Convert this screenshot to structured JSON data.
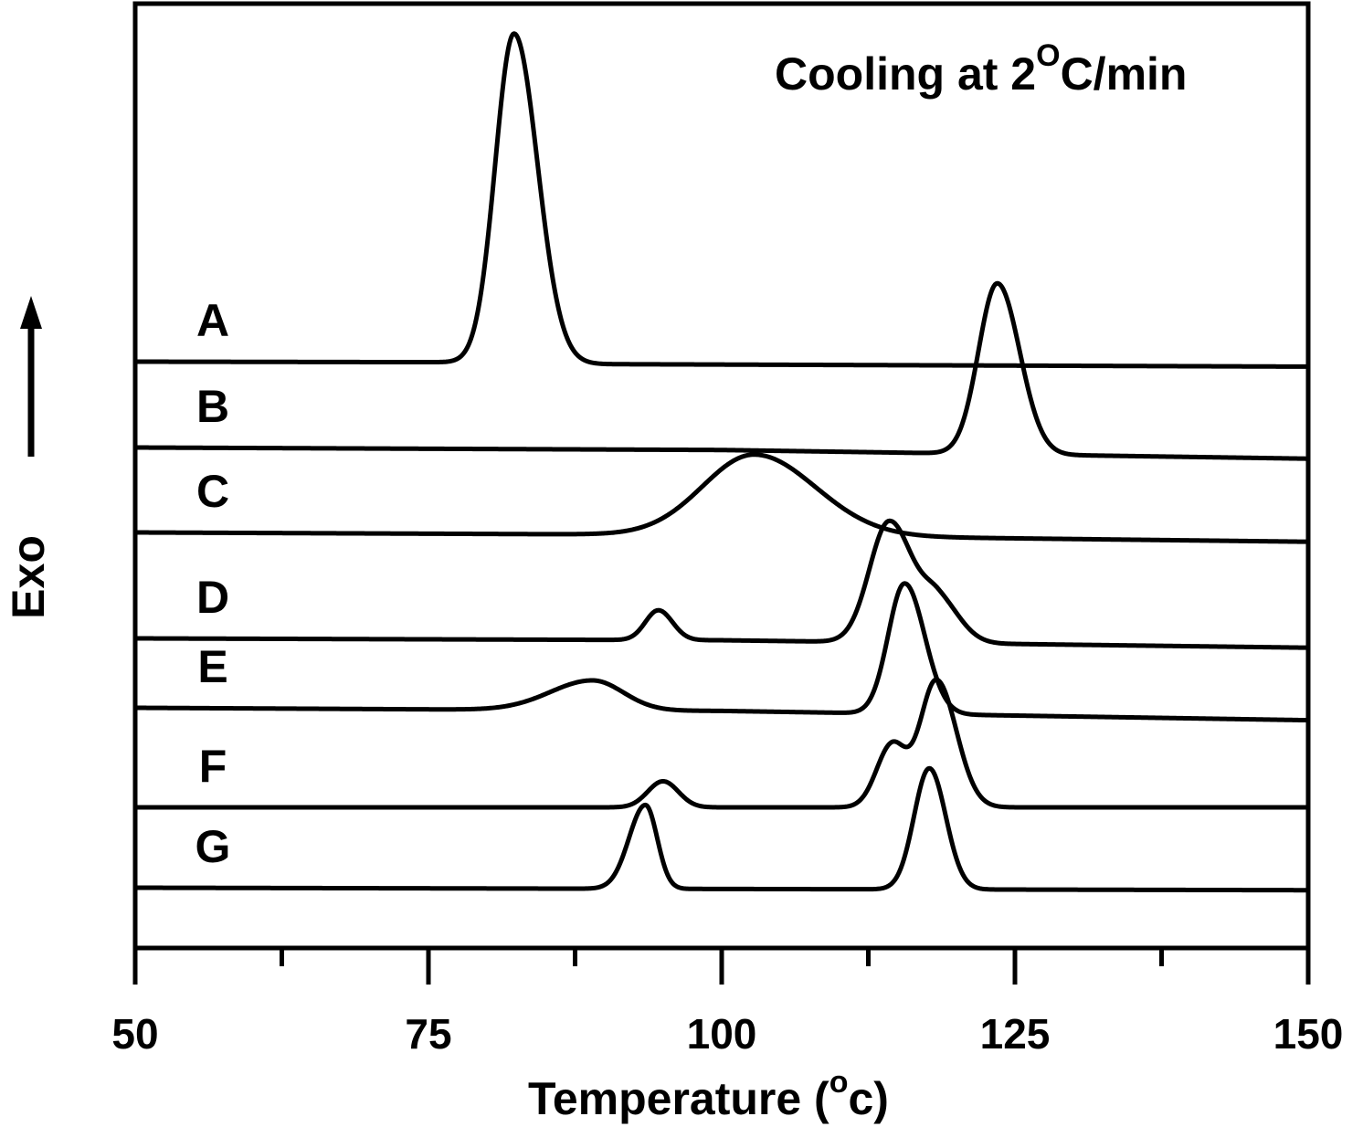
{
  "chart_data": {
    "type": "line",
    "title": "",
    "annotation": {
      "text": "Cooling at 2",
      "sup": "O",
      "suffix": "C/min"
    },
    "xlabel": {
      "text": "Temperature (",
      "sup": "o",
      "suffix": "c)"
    },
    "ylabel": "Exo",
    "xlim": [
      50,
      150
    ],
    "x_ticks_major": [
      50,
      75,
      100,
      125,
      150
    ],
    "x_tick_labels": [
      "50",
      "75",
      "100",
      "125",
      "150"
    ],
    "x_ticks_minor": [
      62.5,
      87.5,
      112.5,
      137.5
    ],
    "y_axis_arrow": "up",
    "y_ticks": "none",
    "grid": false,
    "legend": "none",
    "series": [
      {
        "name": "A",
        "label": "A",
        "baseline": [
          [
            50,
            1.0
          ],
          [
            80,
            0.99
          ],
          [
            90,
            0.96
          ],
          [
            150,
            0.92
          ]
        ],
        "peaks": [
          {
            "x": 82.3,
            "h": 5.3,
            "wl": 1.6,
            "wr": 2.0
          }
        ]
      },
      {
        "name": "B",
        "label": "B",
        "baseline": [
          [
            50,
            1.0
          ],
          [
            100,
            0.96
          ],
          [
            150,
            0.82
          ]
        ],
        "peaks": [
          {
            "x": 123.5,
            "h": 2.75,
            "wl": 1.6,
            "wr": 1.9
          }
        ]
      },
      {
        "name": "C",
        "label": "C",
        "baseline": [
          [
            50,
            1.0
          ],
          [
            100,
            0.96
          ],
          [
            150,
            0.85
          ]
        ],
        "peaks": [
          {
            "x": 102.8,
            "h": 1.3,
            "wl": 4.4,
            "wr": 5.2
          }
        ]
      },
      {
        "name": "D",
        "label": "D",
        "baseline": [
          [
            50,
            1.0
          ],
          [
            100,
            0.97
          ],
          [
            150,
            0.85
          ]
        ],
        "peaks": [
          {
            "x": 94.6,
            "h": 0.48,
            "wl": 1.1,
            "wr": 1.2
          },
          {
            "x": 114.3,
            "h": 1.95,
            "wl": 1.7,
            "wr": 2.0
          },
          {
            "x": 118.5,
            "h": 0.65,
            "wl": 1.4,
            "wr": 1.8
          }
        ]
      },
      {
        "name": "E",
        "label": "E",
        "baseline": [
          [
            50,
            1.0
          ],
          [
            100,
            0.95
          ],
          [
            150,
            0.8
          ]
        ],
        "peaks": [
          {
            "x": 89.0,
            "h": 0.48,
            "wl": 3.6,
            "wr": 2.6
          },
          {
            "x": 115.6,
            "h": 2.1,
            "wl": 1.4,
            "wr": 1.7
          }
        ]
      },
      {
        "name": "F",
        "label": "F",
        "baseline": [
          [
            50,
            1.0
          ],
          [
            150,
            1.0
          ]
        ],
        "peaks": [
          {
            "x": 95.0,
            "h": 0.42,
            "wl": 1.3,
            "wr": 1.3
          },
          {
            "x": 114.5,
            "h": 1.0,
            "wl": 1.3,
            "wr": 1.2
          },
          {
            "x": 118.3,
            "h": 2.05,
            "wl": 1.4,
            "wr": 1.7
          }
        ]
      },
      {
        "name": "G",
        "label": "G",
        "baseline": [
          [
            50,
            1.0
          ],
          [
            100,
            0.98
          ],
          [
            150,
            0.96
          ]
        ],
        "peaks": [
          {
            "x": 93.5,
            "h": 1.35,
            "wl": 1.4,
            "wr": 1.0
          },
          {
            "x": 117.7,
            "h": 1.95,
            "wl": 1.3,
            "wr": 1.4
          }
        ]
      }
    ]
  }
}
